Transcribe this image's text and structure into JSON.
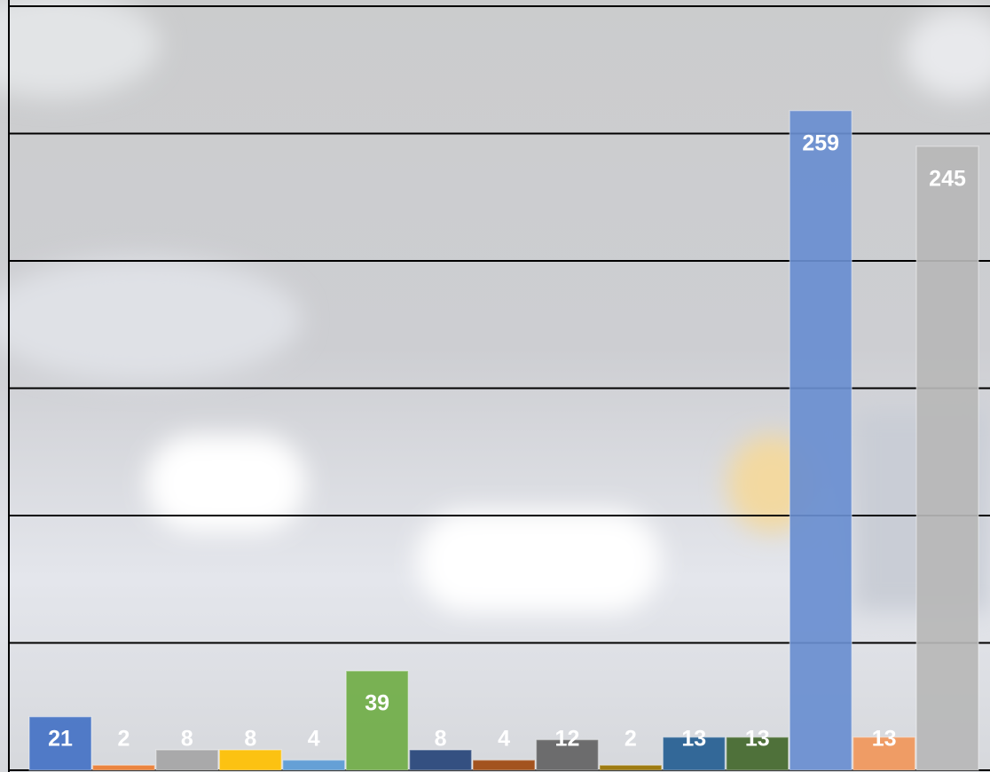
{
  "chart_data": {
    "type": "bar",
    "categories": [
      null,
      null,
      null,
      null,
      null,
      null,
      null,
      null,
      null,
      null,
      null,
      null,
      null,
      null,
      null
    ],
    "values": [
      21,
      2,
      8,
      8,
      4,
      39,
      8,
      4,
      12,
      2,
      13,
      13,
      259,
      13,
      245
    ],
    "colors": [
      "#4472c4",
      "#ed7d31",
      "#a5a5a5",
      "#ffc000",
      "#5b9bd5",
      "#70ad47",
      "#264478",
      "#9e480e",
      "#636363",
      "#997300",
      "#255e91",
      "#43682b",
      "#698ed0",
      "#f1975a",
      "#b7b7b7"
    ],
    "ylim": [
      0,
      300
    ],
    "yticks": [
      0,
      50,
      100,
      150,
      200,
      250,
      300
    ],
    "grid": true
  }
}
